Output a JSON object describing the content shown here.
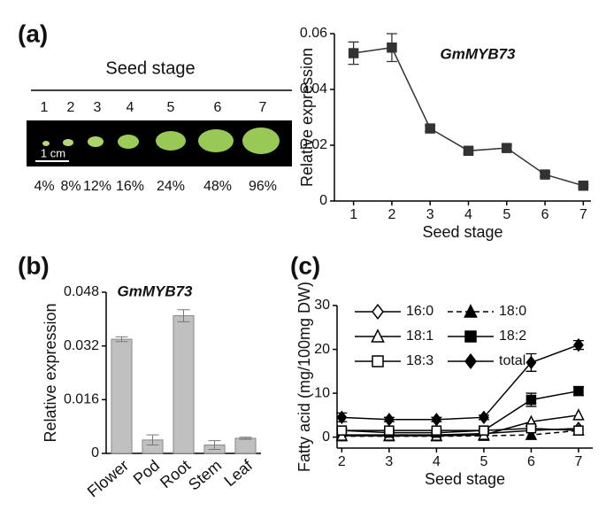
{
  "figure": {
    "panel_labels": [
      "(a)",
      "(b)",
      "(c)"
    ],
    "seed_photo": {
      "title": "Seed stage",
      "stages": [
        "1",
        "2",
        "3",
        "4",
        "5",
        "6",
        "7"
      ],
      "scale": "1 cm",
      "percent": [
        "4%",
        "8%",
        "12%",
        "16%",
        "24%",
        "48%",
        "96%"
      ]
    }
  },
  "chart_data": [
    {
      "type": "line",
      "title": "GmMYB73",
      "x": [
        1,
        2,
        3,
        4,
        5,
        6,
        7
      ],
      "values": [
        0.053,
        0.055,
        0.026,
        0.018,
        0.019,
        0.0095,
        0.0055
      ],
      "errors": [
        0.004,
        0.005,
        0.001,
        0.001,
        0.001,
        0.0008,
        0.0005
      ],
      "color": "#333333",
      "marker": "square",
      "filled": true,
      "xlim": [
        0.5,
        7.2
      ],
      "ylim": [
        0,
        0.06
      ],
      "xticks": [
        1,
        2,
        3,
        4,
        5,
        6,
        7
      ],
      "yticks": [
        0,
        0.02,
        0.04,
        0.06
      ],
      "xlabel": "Seed stage",
      "ylabel": "Relative expression"
    },
    {
      "type": "bar",
      "title": "GmMYB73",
      "categories": [
        "Flower",
        "Pod",
        "Root",
        "Stem",
        "Leaf"
      ],
      "values": [
        0.034,
        0.004,
        0.041,
        0.0025,
        0.0045
      ],
      "errors": [
        0.0007,
        0.0015,
        0.0018,
        0.0013,
        0.0003
      ],
      "color": "#c0c0c0",
      "ylim": [
        0,
        0.048
      ],
      "yticks": [
        0,
        0.016,
        0.032,
        0.048
      ],
      "ylabel": "Relative expression"
    },
    {
      "type": "line",
      "x": [
        2,
        3,
        4,
        5,
        6,
        7
      ],
      "series": [
        {
          "name": "16:0",
          "color": "#000000",
          "marker": "diamond",
          "filled": false,
          "values": [
            0.5,
            0.5,
            0.5,
            0.8,
            1.5,
            2
          ]
        },
        {
          "name": "18:0",
          "color": "#000000",
          "marker": "triangle",
          "filled": true,
          "dashed": true,
          "values": [
            0.2,
            0.2,
            0.2,
            0.3,
            0.5,
            1.5
          ]
        },
        {
          "name": "18:1",
          "color": "#000000",
          "marker": "triangle",
          "filled": false,
          "values": [
            0.3,
            0.3,
            0.3,
            0.5,
            3.5,
            5
          ]
        },
        {
          "name": "18:2",
          "color": "#000000",
          "marker": "square",
          "filled": true,
          "values": [
            1.5,
            1,
            1,
            1.5,
            8.5,
            10.5
          ],
          "errors": [
            0.5,
            0.3,
            0.3,
            0.3,
            1.5,
            1
          ]
        },
        {
          "name": "18:3",
          "color": "#000000",
          "marker": "square",
          "filled": false,
          "values": [
            1.5,
            1.5,
            1.5,
            1.5,
            2,
            1.5
          ]
        },
        {
          "name": "total",
          "color": "#000000",
          "marker": "diamond",
          "filled": true,
          "values": [
            4.5,
            4,
            4,
            4.5,
            17,
            21
          ],
          "errors": [
            1,
            0.5,
            0.5,
            0.5,
            2,
            1
          ]
        }
      ],
      "xlim": [
        1.9,
        7.3
      ],
      "ylim": [
        -2.5,
        30
      ],
      "xticks": [
        2,
        3,
        4,
        5,
        6,
        7
      ],
      "yticks": [
        0,
        10,
        20,
        30
      ],
      "xlabel": "Seed stage",
      "ylabel": "Fatty acid  (mg/100mg DW)",
      "legend": "upper-left"
    }
  ]
}
